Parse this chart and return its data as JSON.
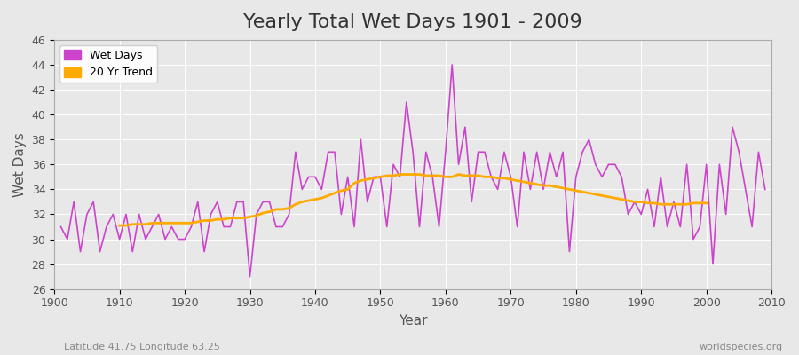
{
  "title": "Yearly Total Wet Days 1901 - 2009",
  "xlabel": "Year",
  "ylabel": "Wet Days",
  "bottom_left_label": "Latitude 41.75 Longitude 63.25",
  "bottom_right_label": "worldspecies.org",
  "ylim": [
    26,
    46
  ],
  "yticks": [
    26,
    28,
    30,
    32,
    34,
    36,
    38,
    40,
    42,
    44,
    46
  ],
  "line_color": "#cc44cc",
  "trend_color": "#ffaa00",
  "bg_color": "#e8e8e8",
  "plot_bg_color": "#e8e8e8",
  "legend_wet_days": "Wet Days",
  "legend_trend": "20 Yr Trend",
  "years": [
    1901,
    1902,
    1903,
    1904,
    1905,
    1906,
    1907,
    1908,
    1909,
    1910,
    1911,
    1912,
    1913,
    1914,
    1915,
    1916,
    1917,
    1918,
    1919,
    1920,
    1921,
    1922,
    1923,
    1924,
    1925,
    1926,
    1927,
    1928,
    1929,
    1930,
    1931,
    1932,
    1933,
    1934,
    1935,
    1936,
    1937,
    1938,
    1939,
    1940,
    1941,
    1942,
    1943,
    1944,
    1945,
    1946,
    1947,
    1948,
    1949,
    1950,
    1951,
    1952,
    1953,
    1954,
    1955,
    1956,
    1957,
    1958,
    1959,
    1960,
    1961,
    1962,
    1963,
    1964,
    1965,
    1966,
    1967,
    1968,
    1969,
    1970,
    1971,
    1972,
    1973,
    1974,
    1975,
    1976,
    1977,
    1978,
    1979,
    1980,
    1981,
    1982,
    1983,
    1984,
    1985,
    1986,
    1987,
    1988,
    1989,
    1990,
    1991,
    1992,
    1993,
    1994,
    1995,
    1996,
    1997,
    1998,
    1999,
    2000,
    2001,
    2002,
    2003,
    2004,
    2005,
    2006,
    2007,
    2008,
    2009
  ],
  "wet_days": [
    31,
    30,
    33,
    29,
    32,
    33,
    29,
    31,
    32,
    30,
    32,
    29,
    32,
    30,
    31,
    32,
    30,
    31,
    30,
    30,
    31,
    33,
    29,
    32,
    33,
    31,
    31,
    33,
    33,
    27,
    32,
    33,
    33,
    31,
    31,
    32,
    37,
    34,
    35,
    35,
    34,
    37,
    37,
    32,
    35,
    31,
    38,
    33,
    35,
    35,
    31,
    36,
    35,
    41,
    37,
    31,
    37,
    35,
    31,
    37,
    44,
    36,
    39,
    33,
    37,
    37,
    35,
    34,
    37,
    35,
    31,
    37,
    34,
    37,
    34,
    37,
    35,
    37,
    29,
    35,
    37,
    38,
    36,
    35,
    36,
    36,
    35,
    32,
    33,
    32,
    34,
    31,
    35,
    31,
    33,
    31,
    36,
    30,
    31,
    36,
    28,
    36,
    32,
    39,
    37,
    34,
    31,
    37,
    34
  ],
  "trend": [
    null,
    null,
    null,
    null,
    null,
    null,
    null,
    null,
    null,
    31.1,
    31.1,
    31.2,
    31.2,
    31.2,
    31.3,
    31.3,
    31.3,
    31.3,
    31.3,
    31.3,
    31.3,
    31.4,
    31.5,
    31.5,
    31.6,
    31.6,
    31.7,
    31.7,
    31.7,
    31.8,
    31.9,
    32.1,
    32.2,
    32.4,
    32.4,
    32.5,
    32.8,
    33.0,
    33.1,
    33.2,
    33.3,
    33.5,
    33.7,
    33.9,
    34.0,
    34.5,
    34.7,
    34.8,
    34.9,
    35.0,
    35.1,
    35.1,
    35.2,
    35.2,
    35.2,
    35.2,
    35.1,
    35.1,
    35.1,
    35.0,
    35.0,
    35.2,
    35.1,
    35.1,
    35.1,
    35.0,
    35.0,
    34.9,
    34.9,
    34.8,
    34.7,
    34.6,
    34.5,
    34.4,
    34.3,
    34.3,
    34.2,
    34.1,
    34.0,
    33.9,
    33.8,
    33.7,
    33.6,
    33.5,
    33.4,
    33.3,
    33.2,
    33.1,
    33.0,
    33.0,
    32.9,
    32.9,
    32.8,
    32.8,
    32.8,
    32.8,
    32.8,
    32.9,
    32.9,
    32.9,
    null,
    null,
    null,
    null,
    null,
    null,
    null,
    null,
    null
  ]
}
